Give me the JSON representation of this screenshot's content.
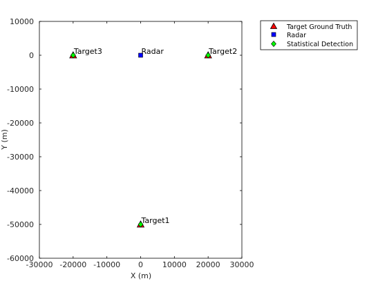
{
  "chart_data": {
    "type": "scatter",
    "xlabel": "X (m)",
    "ylabel": "Y (m)",
    "xlim": [
      -30000,
      30000
    ],
    "ylim": [
      -60000,
      10000
    ],
    "x_ticks": [
      -30000,
      -20000,
      -10000,
      0,
      10000,
      20000,
      30000
    ],
    "y_ticks": [
      10000,
      0,
      -10000,
      -20000,
      -30000,
      -40000,
      -50000,
      -60000
    ],
    "x_tick_labels": [
      "-30000",
      "-20000",
      "-10000",
      "0",
      "10000",
      "20000",
      "30000"
    ],
    "y_tick_labels": [
      "10000",
      "0",
      "-10000",
      "-20000",
      "-30000",
      "-40000",
      "-50000",
      "-60000"
    ],
    "grid": false,
    "legend_position": "outside-top-right",
    "series": [
      {
        "name": "Target Ground Truth",
        "marker": "triangle",
        "color": "#ff0000",
        "points": [
          {
            "label": "Target1",
            "x": 0,
            "y": -50000
          },
          {
            "label": "Target2",
            "x": 20000,
            "y": 0
          },
          {
            "label": "Target3",
            "x": -20000,
            "y": 0
          }
        ]
      },
      {
        "name": "Radar",
        "marker": "square",
        "color": "#0000ff",
        "points": [
          {
            "label": "Radar",
            "x": 0,
            "y": 0
          }
        ]
      },
      {
        "name": "Statistical Detection",
        "marker": "diamond",
        "color": "#00ff00",
        "points": [
          {
            "x": 0,
            "y": -50000
          },
          {
            "x": 20000,
            "y": 0
          },
          {
            "x": -20000,
            "y": 0
          }
        ]
      }
    ]
  }
}
